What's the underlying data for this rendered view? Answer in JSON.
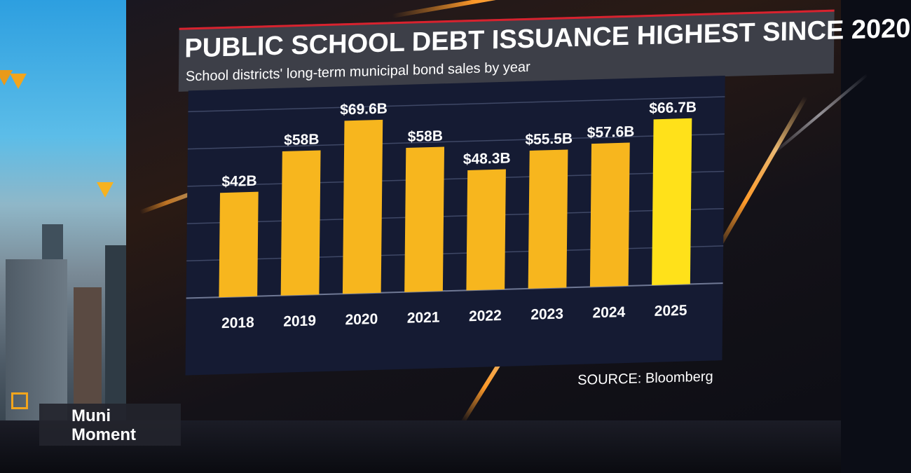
{
  "graphic": {
    "title": "PUBLIC SCHOOL DEBT ISSUANCE HIGHEST SINCE 2020",
    "subtitle": "School districts' long-term municipal bond sales by year",
    "source": "SOURCE: Bloomberg"
  },
  "segment_tag": {
    "line1": "Muni",
    "line2": "Moment"
  },
  "colors": {
    "bar": "#f7b61e",
    "bar_highlight": "#ffe11a",
    "chart_bg": "#151b33",
    "title_bg": "#3d3f48",
    "accent_red": "#d8222e"
  },
  "chart_data": {
    "type": "bar",
    "title": "PUBLIC SCHOOL DEBT ISSUANCE HIGHEST SINCE 2020",
    "subtitle": "School districts' long-term municipal bond sales by year",
    "categories": [
      "2018",
      "2019",
      "2020",
      "2021",
      "2022",
      "2023",
      "2024",
      "2025"
    ],
    "values": [
      42,
      58,
      69.6,
      58,
      48.3,
      55.5,
      57.6,
      66.7
    ],
    "data_labels": [
      "$42B",
      "$58B",
      "$69.6B",
      "$58B",
      "$48.3B",
      "$55.5B",
      "$57.6B",
      "$66.7B"
    ],
    "highlight_index": 7,
    "ylim": [
      0,
      75
    ],
    "grid": true,
    "xlabel": "",
    "ylabel": ""
  }
}
